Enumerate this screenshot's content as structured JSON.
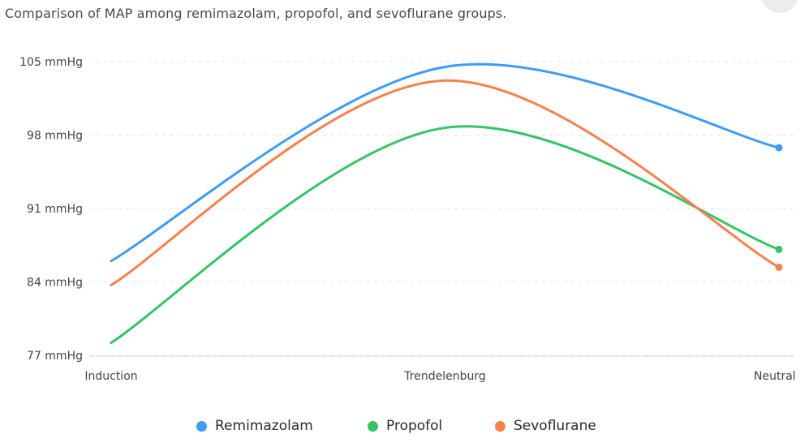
{
  "chart_data": {
    "type": "line",
    "title": "Comparison of MAP among remimazolam, propofol, and sevoflurane groups.",
    "categories": [
      "Induction",
      "Trendelenburg",
      "Neutral"
    ],
    "y_axis": {
      "min": 77,
      "max": 105,
      "ticks": [
        105,
        98,
        91,
        84,
        77
      ],
      "unit_suffix": " mmHg",
      "tick_labels": [
        "105 mmHg",
        "98 mmHg",
        "91 mmHg",
        "84 mmHg",
        "77 mmHg"
      ]
    },
    "grid": "horizontal dashed",
    "legend_position": "bottom-center",
    "series": [
      {
        "name": "Remimazolam",
        "color": "#3d9cf5",
        "values": [
          86.0,
          104.5,
          96.8
        ]
      },
      {
        "name": "Propofol",
        "color": "#34c468",
        "values": [
          78.2,
          98.7,
          87.1
        ]
      },
      {
        "name": "Sevoflurane",
        "color": "#f6814b",
        "values": [
          83.7,
          103.2,
          85.4
        ]
      }
    ]
  },
  "legend": {
    "items": [
      {
        "label": "Remimazolam",
        "color": "#3d9cf5"
      },
      {
        "label": "Propofol",
        "color": "#34c468"
      },
      {
        "label": "Sevoflurane",
        "color": "#f6814b"
      }
    ]
  },
  "corner_button": {
    "icon": "circle-button-icon"
  }
}
